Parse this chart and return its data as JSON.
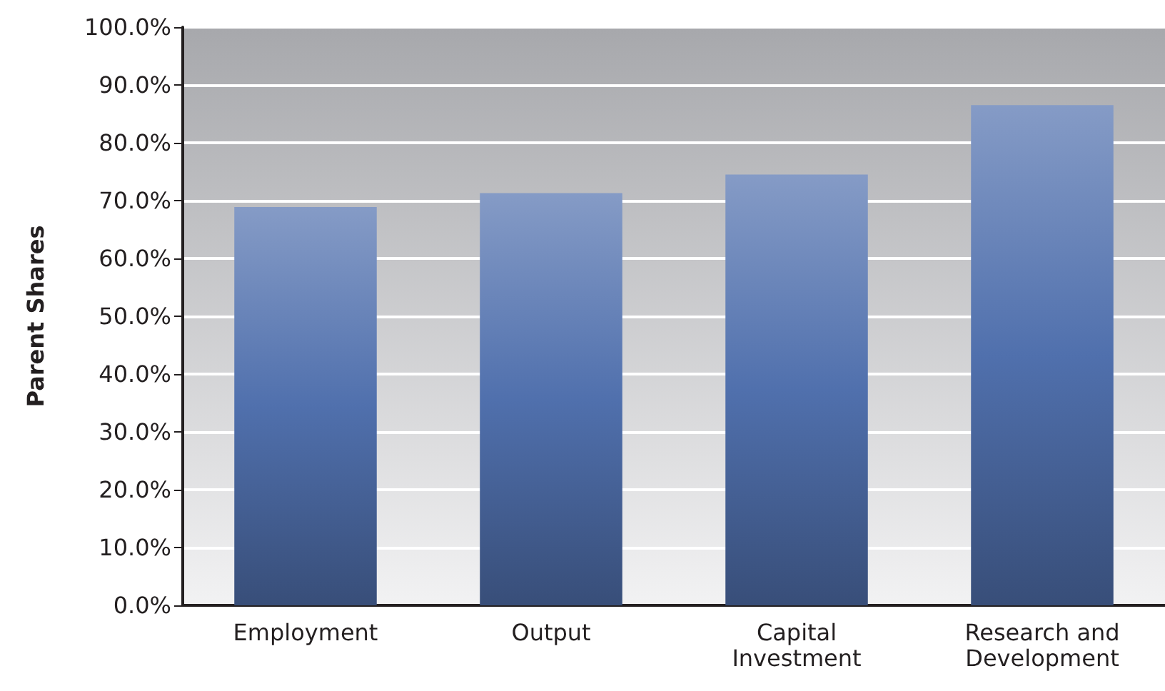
{
  "chart_data": {
    "type": "bar",
    "ylabel": "Parent Shares",
    "categories": [
      "Employment",
      "Output",
      "Capital\nInvestment",
      "Research and\nDevelopment"
    ],
    "values": [
      68.9,
      71.3,
      74.5,
      86.5
    ],
    "color": "#5070ad",
    "ylim": [
      0,
      100
    ],
    "yticks": [
      {
        "value": 0,
        "label": "0.0%"
      },
      {
        "value": 10,
        "label": "10.0%"
      },
      {
        "value": 20,
        "label": "20.0%"
      },
      {
        "value": 30,
        "label": "30.0%"
      },
      {
        "value": 40,
        "label": "40.0%"
      },
      {
        "value": 50,
        "label": "50.0%"
      },
      {
        "value": 60,
        "label": "60.0%"
      },
      {
        "value": 70,
        "label": "70.0%"
      },
      {
        "value": 80,
        "label": "80.0%"
      },
      {
        "value": 90,
        "label": "90.0%"
      },
      {
        "value": 100,
        "label": "100.0%"
      }
    ],
    "grid": "y"
  }
}
